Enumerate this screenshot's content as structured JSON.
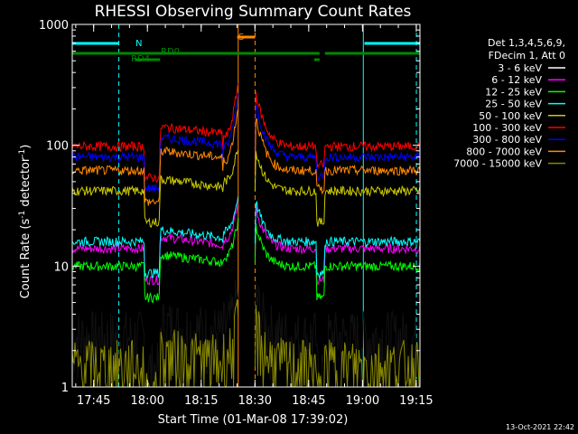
{
  "chart_data": {
    "type": "line",
    "title": "RHESSI Observing Summary Count Rates",
    "xlabel": "Start Time (01-Mar-08 17:39:02)",
    "ylabel_main": "Count Rate (s",
    "ylabel_sup1": "-1",
    "ylabel_mid": " detector",
    "ylabel_sup2": "-1",
    "ylabel_end": ")",
    "y_scale": "log",
    "ylim": [
      1,
      1000
    ],
    "xlim_minutes": [
      0,
      97
    ],
    "x_ticks": [
      {
        "label": "17:45",
        "min": 5.97
      },
      {
        "label": "18:00",
        "min": 20.97
      },
      {
        "label": "18:15",
        "min": 35.97
      },
      {
        "label": "18:30",
        "min": 50.97
      },
      {
        "label": "18:45",
        "min": 65.97
      },
      {
        "label": "19:00",
        "min": 80.97
      },
      {
        "label": "19:15",
        "min": 95.97
      }
    ],
    "y_ticks": [
      {
        "label": "1000",
        "value": 1000
      },
      {
        "label": "100",
        "value": 100
      },
      {
        "label": "10",
        "value": 10
      },
      {
        "label": "1",
        "value": 1
      }
    ],
    "legend_position": "right",
    "legend_header": [
      "Det 1,3,4,5,6,9,",
      "FDecim 1, Att 0"
    ],
    "series": [
      {
        "name": "3 - 6 keV",
        "color": "#000000",
        "level": 2.6
      },
      {
        "name": "6 - 12 keV",
        "color": "#ff00ff",
        "level": 14
      },
      {
        "name": "12 - 25 keV",
        "color": "#00ff00",
        "level": 10
      },
      {
        "name": "25 - 50 keV",
        "color": "#00ffff",
        "level": 16
      },
      {
        "name": "50 - 100 keV",
        "color": "#cccc00",
        "level": 42
      },
      {
        "name": "100 - 300 keV",
        "color": "#ff0000",
        "level": 98
      },
      {
        "name": "300 - 800 keV",
        "color": "#0000ff",
        "level": 80
      },
      {
        "name": "800 - 7000 keV",
        "color": "#ff8800",
        "level": 62
      },
      {
        "name": "7000 - 15000 keV",
        "color": "#888800",
        "level": 1.5
      }
    ],
    "bars": [
      {
        "label": "N",
        "color": "#00ffff",
        "spans": [
          [
            0,
            13
          ],
          [
            81.5,
            97
          ]
        ]
      },
      {
        "label": "RD0",
        "color": "#008800",
        "spans": [
          [
            0,
            69
          ],
          [
            70.5,
            97
          ]
        ]
      },
      {
        "label": "RD4",
        "color": "#008800",
        "spans": [
          [
            17.5,
            24.5
          ],
          [
            67.5,
            69
          ]
        ]
      },
      {
        "label": "S",
        "color": "#ff8800",
        "spans": [
          [
            46,
            51
          ]
        ]
      }
    ],
    "vertical_markers": [
      {
        "min": 13.0,
        "style": "dashed",
        "color": "#00ffff"
      },
      {
        "min": 81.2,
        "style": "solid",
        "color": "#00ffff"
      },
      {
        "min": 96.0,
        "style": "dashed",
        "color": "#00ffff"
      },
      {
        "min": 46.3,
        "style": "solid",
        "color": "#ff8800"
      },
      {
        "min": 51.0,
        "style": "dashed",
        "color": "#ff8800"
      }
    ],
    "timestamp": "13-Oct-2021 22:42"
  }
}
